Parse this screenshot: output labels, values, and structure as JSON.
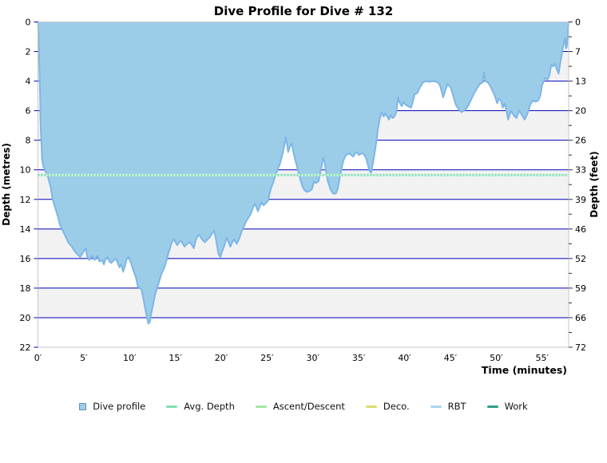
{
  "title": "Dive Profile for Dive # 132",
  "axes": {
    "x": {
      "label": "Time (minutes)",
      "tick_values": [
        0,
        5,
        10,
        15,
        20,
        25,
        30,
        35,
        40,
        45,
        50,
        55
      ],
      "tick_labels": [
        "0′",
        "5′",
        "10′",
        "15′",
        "20′",
        "25′",
        "30′",
        "35′",
        "40′",
        "45′",
        "50′",
        "55′"
      ]
    },
    "y_left": {
      "label": "Depth (metres)",
      "tick_values": [
        0,
        2,
        4,
        6,
        8,
        10,
        12,
        14,
        16,
        18,
        20,
        22
      ]
    },
    "y_right": {
      "label": "Depth (feet)",
      "tick_labels": [
        "0",
        "7",
        "13",
        "20",
        "26",
        "33",
        "39",
        "46",
        "52",
        "59",
        "66",
        "72"
      ]
    }
  },
  "legend": [
    {
      "label": "Dive profile",
      "type": "square",
      "color": "#9bcde9",
      "border": "#6394b4"
    },
    {
      "label": "Avg. Depth",
      "type": "line",
      "color": "#7fdfb2"
    },
    {
      "label": "Ascent/Descent",
      "type": "line",
      "color": "#a2e6a2"
    },
    {
      "label": "Deco.",
      "type": "line",
      "color": "#d9dc6d"
    },
    {
      "label": "RBT",
      "type": "line",
      "color": "#a9d8f1"
    },
    {
      "label": "Work",
      "type": "line",
      "color": "#2e9e86"
    }
  ],
  "colors": {
    "profile_fill": "#9bcde9",
    "profile_stroke": "#7db6e6",
    "grid_major": "#0000bb",
    "band_white": "#ffffff",
    "band_gray": "#f2f2f2",
    "frame": "#c6c6c6",
    "avg_depth_dash": "#84dfb4",
    "avg_depth_base": "#d7f3e6",
    "tick_right": "#333333",
    "text": "#000000"
  },
  "chart_data": {
    "type": "area",
    "title": "Dive Profile for Dive # 132",
    "xlabel": "Time (minutes)",
    "ylabel_left": "Depth (metres)",
    "ylabel_right": "Depth (feet)",
    "x_range": [
      0,
      57.9
    ],
    "depth_range_m": [
      0,
      22
    ],
    "grid": true,
    "legend_position": "bottom",
    "avg_depth_m": 10.35,
    "max_depth_m": 20.4,
    "max_depth_time_min": 12.05,
    "series": [
      {
        "name": "Dive profile",
        "points_t_min_depth_m": [
          [
            0,
            0
          ],
          [
            0.1,
            1.5
          ],
          [
            0.2,
            4
          ],
          [
            0.3,
            7
          ],
          [
            0.45,
            9.3
          ],
          [
            0.6,
            9.8
          ],
          [
            0.9,
            10.2
          ],
          [
            1.1,
            10.5
          ],
          [
            1.4,
            11.2
          ],
          [
            1.6,
            12.0
          ],
          [
            1.9,
            12.6
          ],
          [
            2.2,
            13.2
          ],
          [
            2.4,
            13.7
          ],
          [
            2.7,
            14.1
          ],
          [
            3.0,
            14.5
          ],
          [
            3.3,
            14.9
          ],
          [
            3.7,
            15.2
          ],
          [
            4.0,
            15.5
          ],
          [
            4.3,
            15.7
          ],
          [
            4.6,
            15.9
          ],
          [
            4.9,
            15.6
          ],
          [
            5.2,
            15.3
          ],
          [
            5.4,
            15.9
          ],
          [
            5.6,
            16.1
          ],
          [
            5.9,
            15.8
          ],
          [
            6.2,
            16.1
          ],
          [
            6.5,
            15.8
          ],
          [
            6.7,
            16.2
          ],
          [
            7.0,
            16.1
          ],
          [
            7.2,
            16.4
          ],
          [
            7.4,
            16.0
          ],
          [
            7.6,
            15.9
          ],
          [
            7.8,
            16.2
          ],
          [
            8.0,
            16.3
          ],
          [
            8.3,
            16.1
          ],
          [
            8.5,
            16.0
          ],
          [
            8.7,
            16.3
          ],
          [
            8.9,
            16.6
          ],
          [
            9.1,
            16.4
          ],
          [
            9.3,
            16.9
          ],
          [
            9.5,
            16.5
          ],
          [
            9.7,
            16.0
          ],
          [
            9.9,
            15.9
          ],
          [
            10.1,
            16.2
          ],
          [
            10.4,
            16.8
          ],
          [
            10.7,
            17.3
          ],
          [
            10.9,
            17.9
          ],
          [
            11.1,
            18.0
          ],
          [
            11.3,
            18.1
          ],
          [
            11.5,
            18.7
          ],
          [
            11.7,
            19.4
          ],
          [
            11.9,
            20.0
          ],
          [
            12.05,
            20.4
          ],
          [
            12.2,
            20.3
          ],
          [
            12.4,
            19.6
          ],
          [
            12.6,
            19.0
          ],
          [
            12.8,
            18.4
          ],
          [
            13.0,
            18.0
          ],
          [
            13.3,
            17.4
          ],
          [
            13.5,
            17.0
          ],
          [
            13.8,
            16.6
          ],
          [
            14.0,
            16.2
          ],
          [
            14.2,
            15.7
          ],
          [
            14.4,
            15.3
          ],
          [
            14.6,
            14.9
          ],
          [
            14.8,
            14.7
          ],
          [
            15.0,
            14.9
          ],
          [
            15.2,
            15.1
          ],
          [
            15.4,
            14.9
          ],
          [
            15.6,
            14.8
          ],
          [
            15.8,
            15.0
          ],
          [
            16.0,
            15.2
          ],
          [
            16.3,
            15.0
          ],
          [
            16.6,
            14.9
          ],
          [
            16.8,
            15.1
          ],
          [
            17.0,
            15.3
          ],
          [
            17.2,
            14.8
          ],
          [
            17.4,
            14.5
          ],
          [
            17.6,
            14.4
          ],
          [
            17.9,
            14.7
          ],
          [
            18.2,
            14.9
          ],
          [
            18.5,
            14.7
          ],
          [
            18.7,
            14.6
          ],
          [
            19.0,
            14.3
          ],
          [
            19.2,
            14.1
          ],
          [
            19.4,
            14.6
          ],
          [
            19.5,
            15.0
          ],
          [
            19.7,
            15.7
          ],
          [
            19.9,
            15.9
          ],
          [
            20.1,
            15.5
          ],
          [
            20.3,
            15.2
          ],
          [
            20.6,
            14.6
          ],
          [
            20.8,
            14.9
          ],
          [
            21.0,
            15.2
          ],
          [
            21.2,
            14.9
          ],
          [
            21.4,
            14.7
          ],
          [
            21.7,
            15.0
          ],
          [
            22.0,
            14.6
          ],
          [
            22.2,
            14.2
          ],
          [
            22.5,
            13.8
          ],
          [
            22.7,
            13.5
          ],
          [
            23.0,
            13.2
          ],
          [
            23.2,
            13.0
          ],
          [
            23.5,
            12.5
          ],
          [
            23.7,
            12.3
          ],
          [
            24.0,
            12.8
          ],
          [
            24.2,
            12.5
          ],
          [
            24.4,
            12.2
          ],
          [
            24.6,
            12.4
          ],
          [
            24.8,
            12.3
          ],
          [
            25.1,
            12.1
          ],
          [
            25.4,
            11.3
          ],
          [
            25.7,
            10.8
          ],
          [
            25.9,
            10.4
          ],
          [
            26.2,
            9.9
          ],
          [
            26.4,
            9.6
          ],
          [
            26.7,
            8.9
          ],
          [
            26.9,
            8.3
          ],
          [
            27.05,
            7.8
          ],
          [
            27.2,
            8.4
          ],
          [
            27.3,
            8.8
          ],
          [
            27.45,
            8.5
          ],
          [
            27.6,
            8.3
          ],
          [
            27.7,
            8.2
          ],
          [
            27.9,
            8.9
          ],
          [
            28.1,
            9.4
          ],
          [
            28.4,
            10.1
          ],
          [
            28.6,
            10.6
          ],
          [
            28.9,
            11.2
          ],
          [
            29.1,
            11.4
          ],
          [
            29.4,
            11.5
          ],
          [
            29.7,
            11.4
          ],
          [
            29.9,
            11.3
          ],
          [
            30.1,
            10.8
          ],
          [
            30.3,
            10.9
          ],
          [
            30.6,
            10.8
          ],
          [
            30.8,
            10.2
          ],
          [
            31.0,
            9.6
          ],
          [
            31.1,
            9.2
          ],
          [
            31.25,
            9.4
          ],
          [
            31.4,
            10.0
          ],
          [
            31.6,
            10.7
          ],
          [
            31.9,
            11.3
          ],
          [
            32.2,
            11.6
          ],
          [
            32.5,
            11.6
          ],
          [
            32.7,
            11.3
          ],
          [
            32.9,
            10.6
          ],
          [
            33.1,
            10.0
          ],
          [
            33.3,
            9.4
          ],
          [
            33.6,
            9.0
          ],
          [
            34.0,
            8.9
          ],
          [
            34.2,
            9.0
          ],
          [
            34.4,
            9.1
          ],
          [
            34.6,
            8.9
          ],
          [
            34.8,
            8.8
          ],
          [
            35.0,
            9.0
          ],
          [
            35.3,
            8.9
          ],
          [
            35.5,
            8.9
          ],
          [
            35.8,
            9.2
          ],
          [
            36.0,
            9.7
          ],
          [
            36.2,
            10.1
          ],
          [
            36.35,
            10.2
          ],
          [
            36.5,
            9.7
          ],
          [
            36.7,
            9.0
          ],
          [
            36.9,
            8.2
          ],
          [
            37.1,
            7.2
          ],
          [
            37.3,
            6.5
          ],
          [
            37.5,
            6.1
          ],
          [
            37.7,
            6.4
          ],
          [
            37.9,
            6.2
          ],
          [
            38.1,
            6.4
          ],
          [
            38.3,
            6.6
          ],
          [
            38.5,
            6.3
          ],
          [
            38.7,
            6.5
          ],
          [
            38.9,
            6.4
          ],
          [
            39.1,
            6.1
          ],
          [
            39.3,
            5.1
          ],
          [
            39.5,
            5.5
          ],
          [
            39.7,
            5.7
          ],
          [
            39.9,
            5.4
          ],
          [
            40.1,
            5.6
          ],
          [
            40.4,
            5.7
          ],
          [
            40.7,
            5.8
          ],
          [
            40.9,
            5.4
          ],
          [
            41.1,
            4.9
          ],
          [
            41.4,
            4.8
          ],
          [
            41.7,
            4.4
          ],
          [
            42.0,
            4.1
          ],
          [
            42.3,
            4.0
          ],
          [
            42.7,
            4.05
          ],
          [
            43.1,
            4.0
          ],
          [
            43.5,
            4.05
          ],
          [
            43.8,
            4.2
          ],
          [
            44.0,
            4.6
          ],
          [
            44.2,
            5.1
          ],
          [
            44.4,
            4.7
          ],
          [
            44.7,
            4.2
          ],
          [
            45.0,
            4.4
          ],
          [
            45.3,
            5.0
          ],
          [
            45.6,
            5.6
          ],
          [
            45.9,
            5.9
          ],
          [
            46.2,
            6.1
          ],
          [
            46.5,
            6.0
          ],
          [
            46.8,
            5.8
          ],
          [
            47.0,
            5.6
          ],
          [
            47.3,
            5.2
          ],
          [
            47.6,
            4.8
          ],
          [
            47.9,
            4.5
          ],
          [
            48.2,
            4.2
          ],
          [
            48.5,
            4.1
          ],
          [
            48.65,
            3.4
          ],
          [
            48.8,
            4.0
          ],
          [
            49.1,
            4.1
          ],
          [
            49.4,
            4.4
          ],
          [
            49.7,
            4.8
          ],
          [
            49.9,
            5.1
          ],
          [
            50.1,
            5.5
          ],
          [
            50.3,
            5.2
          ],
          [
            50.5,
            5.3
          ],
          [
            50.7,
            5.8
          ],
          [
            50.9,
            5.5
          ],
          [
            51.1,
            6.0
          ],
          [
            51.3,
            6.6
          ],
          [
            51.6,
            6.0
          ],
          [
            51.9,
            6.3
          ],
          [
            52.2,
            6.5
          ],
          [
            52.5,
            6.0
          ],
          [
            52.8,
            6.3
          ],
          [
            53.1,
            6.6
          ],
          [
            53.4,
            6.2
          ],
          [
            53.7,
            5.6
          ],
          [
            54.0,
            5.3
          ],
          [
            54.3,
            5.4
          ],
          [
            54.6,
            5.3
          ],
          [
            54.8,
            5.0
          ],
          [
            55.0,
            4.3
          ],
          [
            55.3,
            3.8
          ],
          [
            55.6,
            3.9
          ],
          [
            55.8,
            3.6
          ],
          [
            56.0,
            2.9
          ],
          [
            56.2,
            3.0
          ],
          [
            56.4,
            2.8
          ],
          [
            56.6,
            3.2
          ],
          [
            56.8,
            3.5
          ],
          [
            57.0,
            2.7
          ],
          [
            57.2,
            2.0
          ],
          [
            57.35,
            1.5
          ],
          [
            57.5,
            1.1
          ],
          [
            57.6,
            1.8
          ],
          [
            57.7,
            1.7
          ],
          [
            57.8,
            0.7
          ],
          [
            57.9,
            0
          ]
        ]
      }
    ]
  }
}
